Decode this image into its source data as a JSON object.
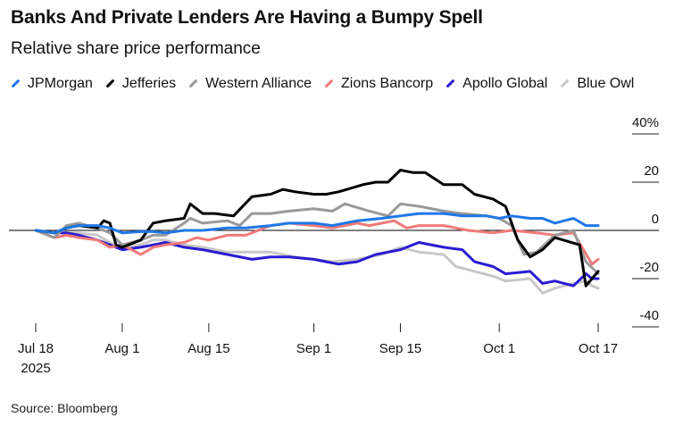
{
  "title": "Banks And Private Lenders Are Having a Bumpy Spell",
  "subtitle": "Relative share price performance",
  "source": "Source: Bloomberg",
  "chart_data": {
    "type": "line",
    "ylim": [
      -40,
      40
    ],
    "xlim": [
      "2025-07-18",
      "2025-10-17"
    ],
    "y_ticks": [
      {
        "value": 40,
        "label": "40%"
      },
      {
        "value": 20,
        "label": "20"
      },
      {
        "value": 0,
        "label": "0"
      },
      {
        "value": -20,
        "label": "-20"
      },
      {
        "value": -40,
        "label": "-40"
      }
    ],
    "x_ticks": [
      {
        "date": "2025-07-18",
        "label": "Jul 18",
        "sublabel": "2025"
      },
      {
        "date": "2025-08-01",
        "label": "Aug 1",
        "sublabel": ""
      },
      {
        "date": "2025-08-15",
        "label": "Aug 15",
        "sublabel": ""
      },
      {
        "date": "2025-09-01",
        "label": "Sep 1",
        "sublabel": ""
      },
      {
        "date": "2025-09-15",
        "label": "Sep 15",
        "sublabel": ""
      },
      {
        "date": "2025-10-01",
        "label": "Oct 1",
        "sublabel": ""
      },
      {
        "date": "2025-10-17",
        "label": "Oct 17",
        "sublabel": ""
      }
    ],
    "zero_line": true,
    "series": [
      {
        "name": "JPMorgan",
        "color": "#1f78e6",
        "points": [
          [
            "2025-07-18",
            0
          ],
          [
            "2025-07-21",
            -1
          ],
          [
            "2025-07-23",
            1
          ],
          [
            "2025-07-25",
            2
          ],
          [
            "2025-07-28",
            2
          ],
          [
            "2025-07-30",
            1
          ],
          [
            "2025-08-01",
            -1
          ],
          [
            "2025-08-04",
            -0.5
          ],
          [
            "2025-08-06",
            -0.5
          ],
          [
            "2025-08-08",
            -1
          ],
          [
            "2025-08-11",
            0
          ],
          [
            "2025-08-14",
            0
          ],
          [
            "2025-08-18",
            1
          ],
          [
            "2025-08-21",
            1
          ],
          [
            "2025-08-25",
            2
          ],
          [
            "2025-08-28",
            3
          ],
          [
            "2025-09-01",
            3
          ],
          [
            "2025-09-04",
            2
          ],
          [
            "2025-09-08",
            4
          ],
          [
            "2025-09-12",
            5
          ],
          [
            "2025-09-15",
            6
          ],
          [
            "2025-09-18",
            7
          ],
          [
            "2025-09-22",
            7
          ],
          [
            "2025-09-25",
            6
          ],
          [
            "2025-09-29",
            6
          ],
          [
            "2025-10-01",
            5
          ],
          [
            "2025-10-03",
            6
          ],
          [
            "2025-10-06",
            5
          ],
          [
            "2025-10-08",
            5
          ],
          [
            "2025-10-10",
            3
          ],
          [
            "2025-10-13",
            5
          ],
          [
            "2025-10-15",
            2
          ],
          [
            "2025-10-17",
            2
          ]
        ]
      },
      {
        "name": "Jefferies",
        "color": "#000000",
        "points": [
          [
            "2025-07-18",
            0
          ],
          [
            "2025-07-21",
            -1
          ],
          [
            "2025-07-23",
            1
          ],
          [
            "2025-07-25",
            2
          ],
          [
            "2025-07-28",
            1
          ],
          [
            "2025-07-29",
            4
          ],
          [
            "2025-07-30",
            3
          ],
          [
            "2025-07-31",
            -6
          ],
          [
            "2025-08-01",
            -7
          ],
          [
            "2025-08-04",
            -4
          ],
          [
            "2025-08-06",
            3
          ],
          [
            "2025-08-08",
            4
          ],
          [
            "2025-08-11",
            5
          ],
          [
            "2025-08-12",
            11
          ],
          [
            "2025-08-14",
            7
          ],
          [
            "2025-08-16",
            7
          ],
          [
            "2025-08-19",
            6
          ],
          [
            "2025-08-22",
            14
          ],
          [
            "2025-08-25",
            15
          ],
          [
            "2025-08-27",
            17
          ],
          [
            "2025-08-29",
            16
          ],
          [
            "2025-09-01",
            15
          ],
          [
            "2025-09-03",
            15
          ],
          [
            "2025-09-05",
            16
          ],
          [
            "2025-09-09",
            19
          ],
          [
            "2025-09-11",
            20
          ],
          [
            "2025-09-13",
            20
          ],
          [
            "2025-09-15",
            25
          ],
          [
            "2025-09-17",
            24
          ],
          [
            "2025-09-19",
            24
          ],
          [
            "2025-09-22",
            19
          ],
          [
            "2025-09-25",
            19
          ],
          [
            "2025-09-27",
            15
          ],
          [
            "2025-09-30",
            13
          ],
          [
            "2025-10-02",
            10
          ],
          [
            "2025-10-04",
            -4
          ],
          [
            "2025-10-06",
            -11
          ],
          [
            "2025-10-08",
            -8
          ],
          [
            "2025-10-10",
            -3
          ],
          [
            "2025-10-14",
            -6
          ],
          [
            "2025-10-15",
            -23
          ],
          [
            "2025-10-17",
            -17
          ]
        ]
      },
      {
        "name": "Western Alliance",
        "color": "#999999",
        "points": [
          [
            "2025-07-18",
            0
          ],
          [
            "2025-07-21",
            -3
          ],
          [
            "2025-07-23",
            2
          ],
          [
            "2025-07-25",
            3
          ],
          [
            "2025-07-28",
            1
          ],
          [
            "2025-07-30",
            -1
          ],
          [
            "2025-08-01",
            -6
          ],
          [
            "2025-08-04",
            -4
          ],
          [
            "2025-08-06",
            -2
          ],
          [
            "2025-08-08",
            -2
          ],
          [
            "2025-08-11",
            3
          ],
          [
            "2025-08-12",
            5
          ],
          [
            "2025-08-14",
            3
          ],
          [
            "2025-08-18",
            4
          ],
          [
            "2025-08-20",
            2
          ],
          [
            "2025-08-22",
            7
          ],
          [
            "2025-08-25",
            7
          ],
          [
            "2025-08-28",
            8
          ],
          [
            "2025-09-01",
            9
          ],
          [
            "2025-09-04",
            8
          ],
          [
            "2025-09-06",
            11
          ],
          [
            "2025-09-10",
            8
          ],
          [
            "2025-09-13",
            6
          ],
          [
            "2025-09-15",
            11
          ],
          [
            "2025-09-18",
            10
          ],
          [
            "2025-09-22",
            8
          ],
          [
            "2025-09-25",
            7
          ],
          [
            "2025-09-29",
            6
          ],
          [
            "2025-10-01",
            5
          ],
          [
            "2025-10-03",
            2
          ],
          [
            "2025-10-05",
            -10
          ],
          [
            "2025-10-07",
            -9
          ],
          [
            "2025-10-10",
            -2
          ],
          [
            "2025-10-13",
            0
          ],
          [
            "2025-10-15",
            -13
          ],
          [
            "2025-10-17",
            -18
          ]
        ]
      },
      {
        "name": "Zions Bancorp",
        "color": "#f07a7a",
        "points": [
          [
            "2025-07-18",
            0
          ],
          [
            "2025-07-21",
            -3
          ],
          [
            "2025-07-23",
            -2
          ],
          [
            "2025-07-25",
            -3
          ],
          [
            "2025-07-28",
            -4
          ],
          [
            "2025-07-30",
            -7
          ],
          [
            "2025-08-01",
            -6
          ],
          [
            "2025-08-04",
            -10
          ],
          [
            "2025-08-06",
            -7
          ],
          [
            "2025-08-08",
            -6
          ],
          [
            "2025-08-11",
            -5
          ],
          [
            "2025-08-13",
            -3
          ],
          [
            "2025-08-15",
            -4
          ],
          [
            "2025-08-18",
            -2
          ],
          [
            "2025-08-21",
            -2
          ],
          [
            "2025-08-25",
            2
          ],
          [
            "2025-08-28",
            3
          ],
          [
            "2025-09-01",
            2
          ],
          [
            "2025-09-04",
            1
          ],
          [
            "2025-09-08",
            3
          ],
          [
            "2025-09-10",
            2
          ],
          [
            "2025-09-14",
            4
          ],
          [
            "2025-09-16",
            1
          ],
          [
            "2025-09-18",
            2
          ],
          [
            "2025-09-22",
            2
          ],
          [
            "2025-09-26",
            0
          ],
          [
            "2025-09-30",
            -1
          ],
          [
            "2025-10-03",
            0
          ],
          [
            "2025-10-07",
            -1
          ],
          [
            "2025-10-10",
            -2
          ],
          [
            "2025-10-13",
            -1
          ],
          [
            "2025-10-16",
            -14
          ],
          [
            "2025-10-17",
            -12
          ]
        ]
      },
      {
        "name": "Apollo Global",
        "color": "#2b1bd0",
        "points": [
          [
            "2025-07-18",
            0
          ],
          [
            "2025-07-21",
            -1
          ],
          [
            "2025-07-23",
            -1
          ],
          [
            "2025-07-25",
            -2
          ],
          [
            "2025-07-28",
            -4
          ],
          [
            "2025-07-30",
            -6
          ],
          [
            "2025-08-01",
            -8
          ],
          [
            "2025-08-04",
            -7
          ],
          [
            "2025-08-06",
            -6
          ],
          [
            "2025-08-08",
            -5
          ],
          [
            "2025-08-11",
            -7
          ],
          [
            "2025-08-14",
            -8
          ],
          [
            "2025-08-18",
            -10
          ],
          [
            "2025-08-22",
            -12
          ],
          [
            "2025-08-25",
            -11
          ],
          [
            "2025-08-28",
            -11
          ],
          [
            "2025-09-01",
            -12
          ],
          [
            "2025-09-03",
            -13
          ],
          [
            "2025-09-05",
            -14
          ],
          [
            "2025-09-08",
            -13
          ],
          [
            "2025-09-11",
            -10
          ],
          [
            "2025-09-15",
            -8
          ],
          [
            "2025-09-18",
            -5
          ],
          [
            "2025-09-22",
            -7
          ],
          [
            "2025-09-25",
            -8
          ],
          [
            "2025-09-27",
            -13
          ],
          [
            "2025-09-30",
            -15
          ],
          [
            "2025-10-02",
            -18
          ],
          [
            "2025-10-06",
            -17
          ],
          [
            "2025-10-08",
            -22
          ],
          [
            "2025-10-10",
            -21
          ],
          [
            "2025-10-13",
            -23
          ],
          [
            "2025-10-15",
            -18
          ],
          [
            "2025-10-16",
            -20
          ],
          [
            "2025-10-17",
            -20
          ]
        ]
      },
      {
        "name": "Blue Owl",
        "color": "#c8c8c8",
        "points": [
          [
            "2025-07-18",
            0
          ],
          [
            "2025-07-21",
            -1
          ],
          [
            "2025-07-23",
            -1
          ],
          [
            "2025-07-25",
            -1
          ],
          [
            "2025-07-28",
            -2
          ],
          [
            "2025-07-30",
            -5
          ],
          [
            "2025-08-01",
            -7
          ],
          [
            "2025-08-04",
            -6
          ],
          [
            "2025-08-06",
            -4
          ],
          [
            "2025-08-08",
            -4
          ],
          [
            "2025-08-11",
            -6
          ],
          [
            "2025-08-14",
            -7
          ],
          [
            "2025-08-18",
            -9
          ],
          [
            "2025-08-22",
            -9
          ],
          [
            "2025-08-25",
            -9
          ],
          [
            "2025-08-29",
            -11
          ],
          [
            "2025-09-01",
            -12
          ],
          [
            "2025-09-04",
            -13
          ],
          [
            "2025-09-08",
            -12
          ],
          [
            "2025-09-12",
            -10
          ],
          [
            "2025-09-15",
            -7
          ],
          [
            "2025-09-18",
            -9
          ],
          [
            "2025-09-22",
            -10
          ],
          [
            "2025-09-24",
            -15
          ],
          [
            "2025-09-27",
            -17
          ],
          [
            "2025-09-30",
            -19
          ],
          [
            "2025-10-02",
            -21
          ],
          [
            "2025-10-06",
            -20
          ],
          [
            "2025-10-08",
            -26
          ],
          [
            "2025-10-10",
            -24
          ],
          [
            "2025-10-13",
            -22
          ],
          [
            "2025-10-15",
            -21
          ],
          [
            "2025-10-16",
            -23
          ],
          [
            "2025-10-17",
            -24
          ]
        ]
      }
    ]
  }
}
